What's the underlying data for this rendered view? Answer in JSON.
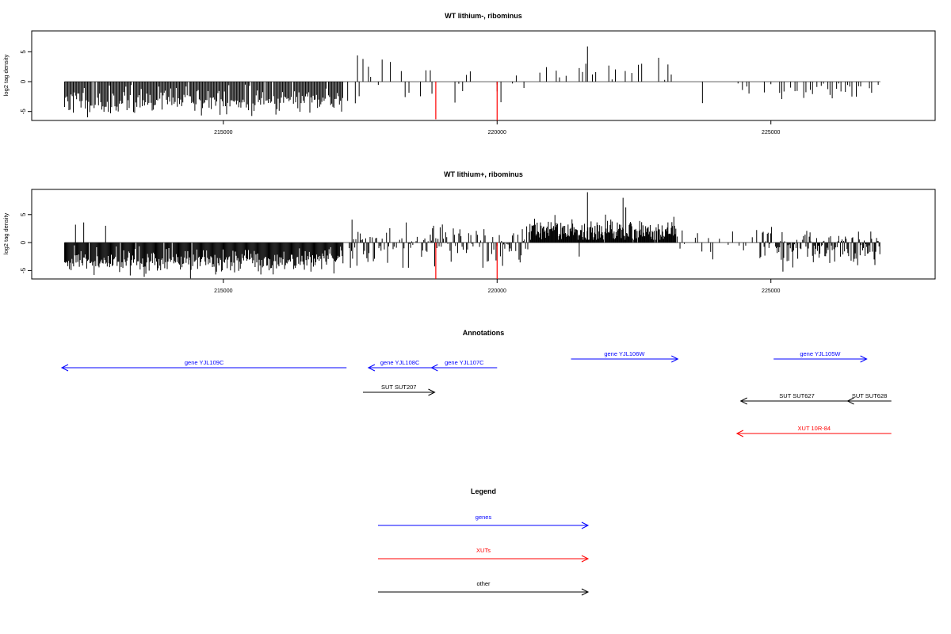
{
  "colors": {
    "gene": "#0000ff",
    "xut": "#ff0000",
    "other": "#000000",
    "highlight": "#ff0000",
    "bars": "#000000"
  },
  "chart_data": [
    {
      "type": "bar",
      "title": "WT lithium-, ribominus",
      "ylabel": "log2 tag density",
      "xlim": [
        211500,
        228000
      ],
      "ylim": [
        -6.5,
        8.5
      ],
      "yticks": [
        -5,
        0,
        5
      ],
      "xticks": [
        215000,
        220000,
        225000
      ],
      "seed": 11,
      "segments": [
        {
          "from": 212100,
          "to": 217200,
          "step": 20,
          "p": 0.97,
          "mean": -3.2,
          "sd": 1.1,
          "min": -6.2,
          "max": -0.5
        },
        {
          "from": 217200,
          "to": 220500,
          "step": 70,
          "p": 0.45,
          "mean": -1.0,
          "sd": 2.0,
          "min": -4.5,
          "max": 3.5
        },
        {
          "from": 220600,
          "to": 223300,
          "step": 60,
          "p": 0.45,
          "mean": 1.6,
          "sd": 0.9,
          "min": 0.3,
          "max": 3.0
        },
        {
          "from": 223300,
          "to": 224400,
          "step": 150,
          "p": 0.1,
          "mean": -1.5,
          "sd": 0.8,
          "min": -3.5,
          "max": -0.3
        },
        {
          "from": 224400,
          "to": 227000,
          "step": 40,
          "p": 0.5,
          "mean": -1.4,
          "sd": 0.8,
          "min": -3.5,
          "max": -0.3
        }
      ],
      "spikes": [
        {
          "x": 217450,
          "y": 4.4
        },
        {
          "x": 217550,
          "y": 3.8
        },
        {
          "x": 217650,
          "y": 2.5
        },
        {
          "x": 217900,
          "y": 3.7
        },
        {
          "x": 218050,
          "y": 3.3
        },
        {
          "x": 218700,
          "y": 1.9
        },
        {
          "x": 218780,
          "y": 1.9
        },
        {
          "x": 221650,
          "y": 5.9
        },
        {
          "x": 222950,
          "y": 4.0
        },
        {
          "x": 223750,
          "y": -3.6
        },
        {
          "x": 220000,
          "y": -0.5
        }
      ],
      "highlights": [
        {
          "x": 218880,
          "y": -6.3
        },
        {
          "x": 220000,
          "y": -6.5
        }
      ]
    },
    {
      "type": "bar",
      "title": "WT lithium+, ribominus",
      "ylabel": "log2 tag density",
      "xlim": [
        211500,
        228000
      ],
      "ylim": [
        -6.5,
        9.5
      ],
      "yticks": [
        -5,
        0,
        5
      ],
      "xticks": [
        215000,
        220000,
        225000
      ],
      "seed": 29,
      "segments": [
        {
          "from": 212100,
          "to": 217200,
          "step": 15,
          "p": 0.97,
          "mean": -3.3,
          "sd": 1.1,
          "min": -6.3,
          "max": -0.5
        },
        {
          "from": 217300,
          "to": 220600,
          "step": 20,
          "p": 0.8,
          "mean": -0.3,
          "sd": 2.0,
          "min": -4.5,
          "max": 3.8
        },
        {
          "from": 220600,
          "to": 223300,
          "step": 12,
          "p": 0.95,
          "mean": 2.2,
          "sd": 1.1,
          "min": 0.5,
          "max": 5.0
        },
        {
          "from": 223300,
          "to": 224800,
          "step": 40,
          "p": 0.45,
          "mean": -0.3,
          "sd": 1.4,
          "min": -3.0,
          "max": 2.5
        },
        {
          "from": 224800,
          "to": 227000,
          "step": 15,
          "p": 0.9,
          "mean": -0.8,
          "sd": 1.7,
          "min": -5.2,
          "max": 2.8
        }
      ],
      "spikes": [
        {
          "x": 212300,
          "y": 3.2
        },
        {
          "x": 212450,
          "y": 3.6
        },
        {
          "x": 212850,
          "y": 3.0
        },
        {
          "x": 214400,
          "y": -6.4
        },
        {
          "x": 217350,
          "y": 4.1
        },
        {
          "x": 221650,
          "y": 9.0
        },
        {
          "x": 222300,
          "y": 8.0
        },
        {
          "x": 222350,
          "y": 6.3
        },
        {
          "x": 221500,
          "y": -2.5
        },
        {
          "x": 226900,
          "y": -4.0
        }
      ],
      "highlights": [
        {
          "x": 218880,
          "y": -6.5
        },
        {
          "x": 220000,
          "y": -6.5
        }
      ]
    }
  ],
  "annotations": {
    "title": "Annotations",
    "features": [
      {
        "label": "gene YJL109C",
        "kind": "gene",
        "start": 217250,
        "end": 212050,
        "row": 1
      },
      {
        "label": "gene YJL108C",
        "kind": "gene",
        "start": 218800,
        "end": 217650,
        "row": 1
      },
      {
        "label": "gene YJL107C",
        "kind": "gene",
        "start": 220000,
        "end": 218800,
        "row": 1
      },
      {
        "label": "gene YJL106W",
        "kind": "gene",
        "start": 221350,
        "end": 223300,
        "row": 0
      },
      {
        "label": "gene YJL105W",
        "kind": "gene",
        "start": 225050,
        "end": 226750,
        "row": 0
      },
      {
        "label": "SUT SUT207",
        "kind": "other",
        "start": 217550,
        "end": 218860,
        "row": 2
      },
      {
        "label": "SUT SUT627",
        "kind": "other",
        "start": 226500,
        "end": 224450,
        "row": 3
      },
      {
        "label": "SUT SUT628",
        "kind": "other",
        "start": 227200,
        "end": 226400,
        "row": 3
      },
      {
        "label": "XUT 10R-84",
        "kind": "xut",
        "start": 227200,
        "end": 224380,
        "row": 4
      }
    ]
  },
  "legend": {
    "title": "Legend",
    "items": [
      {
        "label": "genes",
        "kind": "gene"
      },
      {
        "label": "XUTs",
        "kind": "xut"
      },
      {
        "label": "other",
        "kind": "other"
      }
    ]
  }
}
